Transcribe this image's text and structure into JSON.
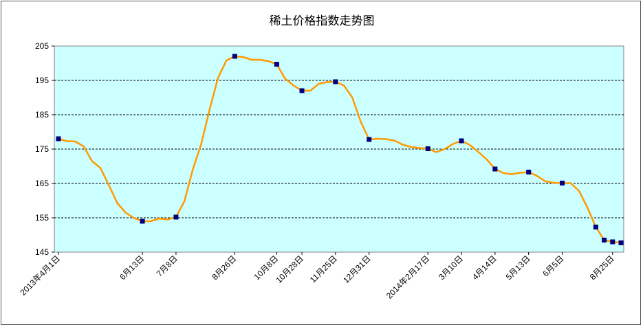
{
  "chart_data": {
    "type": "line",
    "title": "稀土价格指数走势图",
    "xlabel": "",
    "ylabel": "",
    "ylim": [
      145,
      205
    ],
    "yticks": [
      145,
      155,
      165,
      175,
      185,
      195,
      205
    ],
    "grid": "horizontal dashed",
    "legend": "none",
    "colors": {
      "plot_background": "#ccffff",
      "line": "#ff9900",
      "marker": "#000080",
      "grid": "#000000"
    },
    "series": [
      {
        "values": [
          178,
          177.3,
          177.2,
          175.8,
          171.5,
          169.5,
          164.5,
          159.3,
          156.5,
          154.9,
          154,
          154,
          154.8,
          154.5,
          155.2,
          159.8,
          169,
          176.5,
          186.5,
          195.7,
          200.8,
          202,
          201.8,
          201,
          201,
          200.6,
          199.7,
          195.5,
          193.5,
          192,
          192,
          194,
          194.5,
          194.6,
          193.5,
          190,
          183,
          177.8,
          178,
          177.9,
          177.5,
          176.3,
          175.6,
          175.3,
          175.1,
          174.1,
          175,
          176.5,
          177.4,
          176.2,
          174.2,
          172,
          169.2,
          168,
          167.7,
          168.1,
          168.3,
          167.2,
          165.6,
          165.2,
          165.1,
          165.1,
          162.8,
          158,
          152.3,
          148.5,
          148,
          147.7
        ],
        "markers_at": [
          0,
          10,
          14,
          21,
          26,
          29,
          33,
          37,
          44,
          48,
          52,
          56,
          60,
          64,
          65,
          66,
          67
        ]
      }
    ],
    "x_tick_labels": [
      {
        "index": 0,
        "label": "2013年4月1日"
      },
      {
        "index": 10,
        "label": "6月13日"
      },
      {
        "index": 14,
        "label": "7月8日"
      },
      {
        "index": 21,
        "label": "8月26日"
      },
      {
        "index": 26,
        "label": "10月8日"
      },
      {
        "index": 29,
        "label": "10月28日"
      },
      {
        "index": 33,
        "label": "11月25日"
      },
      {
        "index": 37,
        "label": "12月31日"
      },
      {
        "index": 44,
        "label": "2014年2月17日"
      },
      {
        "index": 48,
        "label": "3月10日"
      },
      {
        "index": 52,
        "label": "4月14日"
      },
      {
        "index": 56,
        "label": "5月13日"
      },
      {
        "index": 60,
        "label": "6月5日"
      },
      {
        "index": 66,
        "label": "8月25日"
      }
    ]
  }
}
